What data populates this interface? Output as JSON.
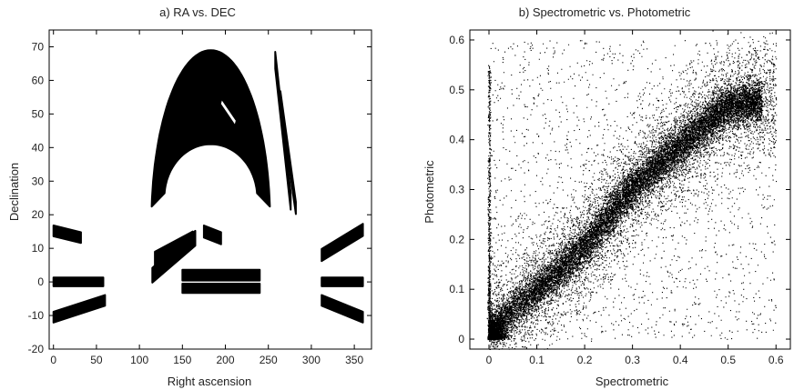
{
  "chart_data": [
    {
      "type": "scatter",
      "title": "a) RA vs. DEC",
      "xlabel": "Right ascension",
      "ylabel": "Declination",
      "xlim": [
        -5,
        370
      ],
      "ylim": [
        -20,
        75
      ],
      "xticks": [
        0,
        50,
        100,
        150,
        200,
        250,
        300,
        350
      ],
      "yticks": [
        -20,
        -10,
        0,
        10,
        20,
        30,
        40,
        50,
        60,
        70
      ],
      "grid": false,
      "legend": "none",
      "point_color": "#000000",
      "regions": [
        {
          "kind": "crescent",
          "desc": "northern cap",
          "center": [
            183,
            42
          ],
          "outer": [
            69,
            69
          ],
          "inner": [
            54,
            28
          ],
          "theta_deg": [
            5,
            175
          ]
        },
        {
          "kind": "strip",
          "desc": "northern stripe",
          "from": [
            258,
            66
          ],
          "to": [
            276,
            24
          ],
          "halfwidth": 2.5
        },
        {
          "kind": "strip",
          "desc": "northern stripe",
          "from": [
            264,
            55
          ],
          "to": [
            282,
            22
          ],
          "halfwidth": 1.8
        },
        {
          "kind": "band",
          "x": [
            0,
            58
          ],
          "y": [
            -1.3,
            1.3
          ]
        },
        {
          "kind": "band",
          "x": [
            312,
            360
          ],
          "y": [
            -1.3,
            1.3
          ]
        },
        {
          "kind": "band",
          "x": [
            150,
            240
          ],
          "y": [
            -3.3,
            -0.5
          ]
        },
        {
          "kind": "strip",
          "desc": "equatorial stripe",
          "from": [
            0,
            15.2
          ],
          "to": [
            32,
            13.2
          ],
          "halfwidth": 1.6
        },
        {
          "kind": "strip",
          "desc": "equatorial stripe",
          "from": [
            0,
            -10.5
          ],
          "to": [
            60,
            -5.5
          ],
          "halfwidth": 1.6
        },
        {
          "kind": "strip",
          "desc": "equatorial stripe",
          "from": [
            312,
            8
          ],
          "to": [
            360,
            15.5
          ],
          "halfwidth": 1.8
        },
        {
          "kind": "strip",
          "desc": "equatorial stripe",
          "from": [
            312,
            -5.5
          ],
          "to": [
            360,
            -10.5
          ],
          "halfwidth": 1.6
        },
        {
          "kind": "strip",
          "desc": "equatorial stripe",
          "from": [
            115,
            2
          ],
          "to": [
            165,
            13
          ],
          "halfwidth": 2.2
        },
        {
          "kind": "strip",
          "desc": "equatorial stripe",
          "from": [
            118,
            7
          ],
          "to": [
            162,
            13
          ],
          "halfwidth": 2
        },
        {
          "kind": "strip",
          "desc": "equatorial stripe",
          "from": [
            150,
            2
          ],
          "to": [
            240,
            2
          ],
          "halfwidth": 1.6
        },
        {
          "kind": "strip",
          "desc": "equatorial stripe",
          "from": [
            175,
            15
          ],
          "to": [
            195,
            13
          ],
          "halfwidth": 1.8
        }
      ]
    },
    {
      "type": "scatter",
      "title": "b) Spectrometric vs. Photometric",
      "xlabel": "Spectrometric",
      "ylabel": "Photometric",
      "xlim": [
        -0.04,
        0.63
      ],
      "ylim": [
        -0.02,
        0.62
      ],
      "xticks": [
        0,
        0.1,
        0.2,
        0.3,
        0.4,
        0.5,
        0.6
      ],
      "yticks": [
        0,
        0.1,
        0.2,
        0.3,
        0.4,
        0.5,
        0.6
      ],
      "grid": false,
      "legend": "none",
      "point_color": "#000000",
      "trend": {
        "x": [
          0.0,
          0.05,
          0.1,
          0.2,
          0.3,
          0.4,
          0.45,
          0.5,
          0.55,
          0.6
        ],
        "y": [
          0.015,
          0.06,
          0.1,
          0.185,
          0.305,
          0.39,
          0.43,
          0.47,
          0.475,
          0.475
        ],
        "spread": 0.02
      },
      "vertical_line_at_x": 0.0
    }
  ]
}
